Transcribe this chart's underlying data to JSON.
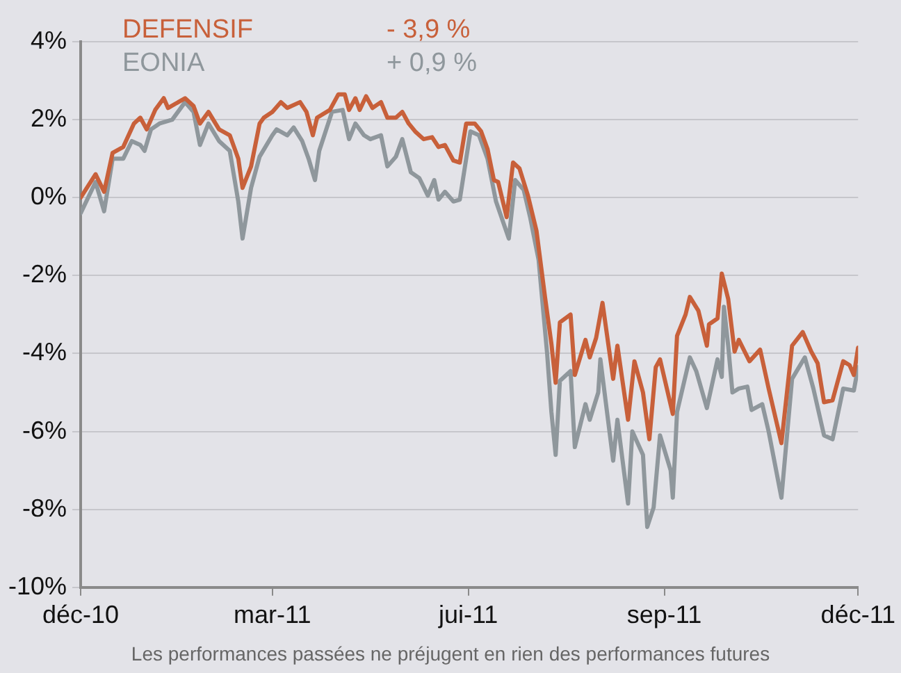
{
  "chart_data": {
    "type": "line",
    "annotations": [
      "- 3,9 %",
      "+ 0,9 %",
      "Les performances passées ne préjugent en rien des performances futures"
    ],
    "xlim": [
      "2010-12-01",
      "2011-12-01"
    ],
    "xticks": [
      {
        "value": "2010-12-01",
        "label": "déc-10"
      },
      {
        "value": "2011-03-01",
        "label": "mar-11"
      },
      {
        "value": "2011-06-01",
        "label": "jui-11"
      },
      {
        "value": "2011-09-01",
        "label": "sep-11"
      },
      {
        "value": "2011-12-01",
        "label": "déc-11"
      }
    ],
    "ylim": [
      -10,
      4
    ],
    "yticks": [
      {
        "value": 4,
        "label": "4%"
      },
      {
        "value": 2,
        "label": "2%"
      },
      {
        "value": 0,
        "label": "0%"
      },
      {
        "value": -2,
        "label": "-2%"
      },
      {
        "value": -4,
        "label": "-4%"
      },
      {
        "value": -6,
        "label": "-6%"
      },
      {
        "value": -8,
        "label": "-8%"
      },
      {
        "value": -10,
        "label": "-10%"
      }
    ],
    "grid": "y",
    "legend": "top left",
    "marker": "none",
    "line_style": "solid",
    "series": [
      {
        "name": "DEFENSIF",
        "color": "#c8603a",
        "x": [
          "2010-12-01",
          "2010-12-08",
          "2010-12-12",
          "2010-12-16",
          "2010-12-21",
          "2010-12-26",
          "2010-12-29",
          "2011-01-01",
          "2011-01-05",
          "2011-01-09",
          "2011-01-11",
          "2011-01-19",
          "2011-01-23",
          "2011-01-26",
          "2011-01-30",
          "2011-02-04",
          "2011-02-09",
          "2011-02-13",
          "2011-02-15",
          "2011-02-19",
          "2011-02-23",
          "2011-02-25",
          "2011-03-01",
          "2011-03-05",
          "2011-03-08",
          "2011-03-14",
          "2011-03-17",
          "2011-03-20",
          "2011-03-22",
          "2011-03-28",
          "2011-04-01",
          "2011-04-04",
          "2011-04-06",
          "2011-04-09",
          "2011-04-11",
          "2011-04-14",
          "2011-04-17",
          "2011-04-21",
          "2011-04-24",
          "2011-04-28",
          "2011-05-01",
          "2011-05-04",
          "2011-05-07",
          "2011-05-11",
          "2011-05-15",
          "2011-05-18",
          "2011-05-21",
          "2011-05-25",
          "2011-05-28",
          "2011-05-31",
          "2011-06-04",
          "2011-06-07",
          "2011-06-10",
          "2011-06-13",
          "2011-06-15",
          "2011-06-19",
          "2011-06-22",
          "2011-06-25",
          "2011-06-29",
          "2011-07-03",
          "2011-07-07",
          "2011-07-10",
          "2011-07-12",
          "2011-07-14",
          "2011-07-19",
          "2011-07-21",
          "2011-07-26",
          "2011-07-28",
          "2011-07-31",
          "2011-08-03",
          "2011-08-08",
          "2011-08-10",
          "2011-08-15",
          "2011-08-18",
          "2011-08-22",
          "2011-08-25",
          "2011-08-28",
          "2011-08-30",
          "2011-09-05",
          "2011-09-07",
          "2011-09-11",
          "2011-09-13",
          "2011-09-17",
          "2011-09-21",
          "2011-09-22",
          "2011-09-26",
          "2011-09-28",
          "2011-10-01",
          "2011-10-04",
          "2011-10-06",
          "2011-10-11",
          "2011-10-16",
          "2011-10-20",
          "2011-10-26",
          "2011-10-31",
          "2011-11-05",
          "2011-11-09",
          "2011-11-12",
          "2011-11-15",
          "2011-11-19",
          "2011-11-24",
          "2011-11-27",
          "2011-11-29",
          "2011-12-01"
        ],
        "values": [
          0.0,
          0.6,
          0.15,
          1.15,
          1.3,
          1.9,
          2.05,
          1.75,
          2.25,
          2.55,
          2.3,
          2.55,
          2.35,
          1.9,
          2.2,
          1.75,
          1.6,
          1.0,
          0.25,
          0.8,
          1.9,
          2.05,
          2.2,
          2.45,
          2.3,
          2.45,
          2.2,
          1.6,
          2.05,
          2.25,
          2.65,
          2.65,
          2.25,
          2.55,
          2.25,
          2.6,
          2.3,
          2.45,
          2.05,
          2.05,
          2.2,
          1.9,
          1.7,
          1.5,
          1.55,
          1.3,
          1.35,
          0.95,
          0.9,
          1.9,
          1.9,
          1.7,
          1.25,
          0.45,
          0.4,
          -0.5,
          0.9,
          0.75,
          0.05,
          -0.85,
          -2.55,
          -3.75,
          -4.75,
          -3.2,
          -3.0,
          -4.55,
          -3.65,
          -4.1,
          -3.6,
          -2.7,
          -4.65,
          -3.8,
          -5.7,
          -4.2,
          -5.0,
          -6.2,
          -4.35,
          -4.15,
          -5.55,
          -3.55,
          -3.0,
          -2.55,
          -2.9,
          -3.8,
          -3.25,
          -3.1,
          -1.95,
          -2.6,
          -3.95,
          -3.65,
          -4.2,
          -3.9,
          -4.9,
          -6.3,
          -3.8,
          -3.45,
          -3.95,
          -4.25,
          -5.25,
          -5.2,
          -4.2,
          -4.3,
          -4.55,
          -3.85
        ]
      },
      {
        "name": "EONIA",
        "color": "#8f979c",
        "x": [
          "2010-12-01",
          "2010-12-08",
          "2010-12-12",
          "2010-12-16",
          "2010-12-21",
          "2010-12-25",
          "2010-12-29",
          "2010-12-31",
          "2011-01-03",
          "2011-01-07",
          "2011-01-13",
          "2011-01-19",
          "2011-01-23",
          "2011-01-26",
          "2011-01-30",
          "2011-02-04",
          "2011-02-09",
          "2011-02-13",
          "2011-02-15",
          "2011-02-19",
          "2011-02-23",
          "2011-03-01",
          "2011-03-03",
          "2011-03-08",
          "2011-03-11",
          "2011-03-15",
          "2011-03-18",
          "2011-03-21",
          "2011-03-23",
          "2011-03-29",
          "2011-04-03",
          "2011-04-06",
          "2011-04-09",
          "2011-04-13",
          "2011-04-16",
          "2011-04-21",
          "2011-04-24",
          "2011-04-28",
          "2011-05-01",
          "2011-05-05",
          "2011-05-09",
          "2011-05-13",
          "2011-05-16",
          "2011-05-18",
          "2011-05-21",
          "2011-05-25",
          "2011-05-28",
          "2011-06-02",
          "2011-06-06",
          "2011-06-10",
          "2011-06-14",
          "2011-06-20",
          "2011-06-23",
          "2011-06-27",
          "2011-06-30",
          "2011-07-04",
          "2011-07-08",
          "2011-07-10",
          "2011-07-12",
          "2011-07-14",
          "2011-07-19",
          "2011-07-21",
          "2011-07-26",
          "2011-07-28",
          "2011-08-01",
          "2011-08-02",
          "2011-08-08",
          "2011-08-10",
          "2011-08-15",
          "2011-08-17",
          "2011-08-22",
          "2011-08-24",
          "2011-08-27",
          "2011-08-30",
          "2011-09-04",
          "2011-09-05",
          "2011-09-07",
          "2011-09-13",
          "2011-09-16",
          "2011-09-21",
          "2011-09-26",
          "2011-09-28",
          "2011-09-29",
          "2011-10-01",
          "2011-10-03",
          "2011-10-06",
          "2011-10-10",
          "2011-10-12",
          "2011-10-17",
          "2011-10-20",
          "2011-10-26",
          "2011-10-31",
          "2011-11-06",
          "2011-11-10",
          "2011-11-15",
          "2011-11-19",
          "2011-11-24",
          "2011-11-29",
          "2011-12-01"
        ],
        "values": [
          -0.4,
          0.4,
          -0.35,
          1.0,
          1.0,
          1.45,
          1.35,
          1.2,
          1.75,
          1.9,
          2.0,
          2.45,
          2.2,
          1.35,
          1.9,
          1.45,
          1.2,
          -0.1,
          -1.05,
          0.25,
          1.05,
          1.6,
          1.75,
          1.6,
          1.8,
          1.45,
          1.0,
          0.45,
          1.2,
          2.2,
          2.25,
          1.5,
          1.9,
          1.6,
          1.5,
          1.6,
          0.8,
          1.05,
          1.5,
          0.65,
          0.5,
          0.05,
          0.45,
          -0.05,
          0.15,
          -0.1,
          -0.05,
          1.7,
          1.6,
          1.0,
          -0.1,
          -1.05,
          0.45,
          0.2,
          -0.5,
          -1.6,
          -4.0,
          -5.5,
          -6.6,
          -4.7,
          -4.45,
          -6.4,
          -5.3,
          -5.7,
          -5.0,
          -4.15,
          -6.75,
          -5.7,
          -7.85,
          -6.0,
          -6.6,
          -8.45,
          -7.95,
          -6.1,
          -7.0,
          -7.7,
          -5.5,
          -4.1,
          -4.45,
          -5.4,
          -4.15,
          -4.6,
          -2.8,
          -3.8,
          -5.0,
          -4.9,
          -4.85,
          -5.45,
          -5.3,
          -6.0,
          -7.7,
          -4.65,
          -4.1,
          -4.9,
          -6.1,
          -6.2,
          -4.9,
          -4.95,
          -4.35
        ]
      }
    ]
  }
}
